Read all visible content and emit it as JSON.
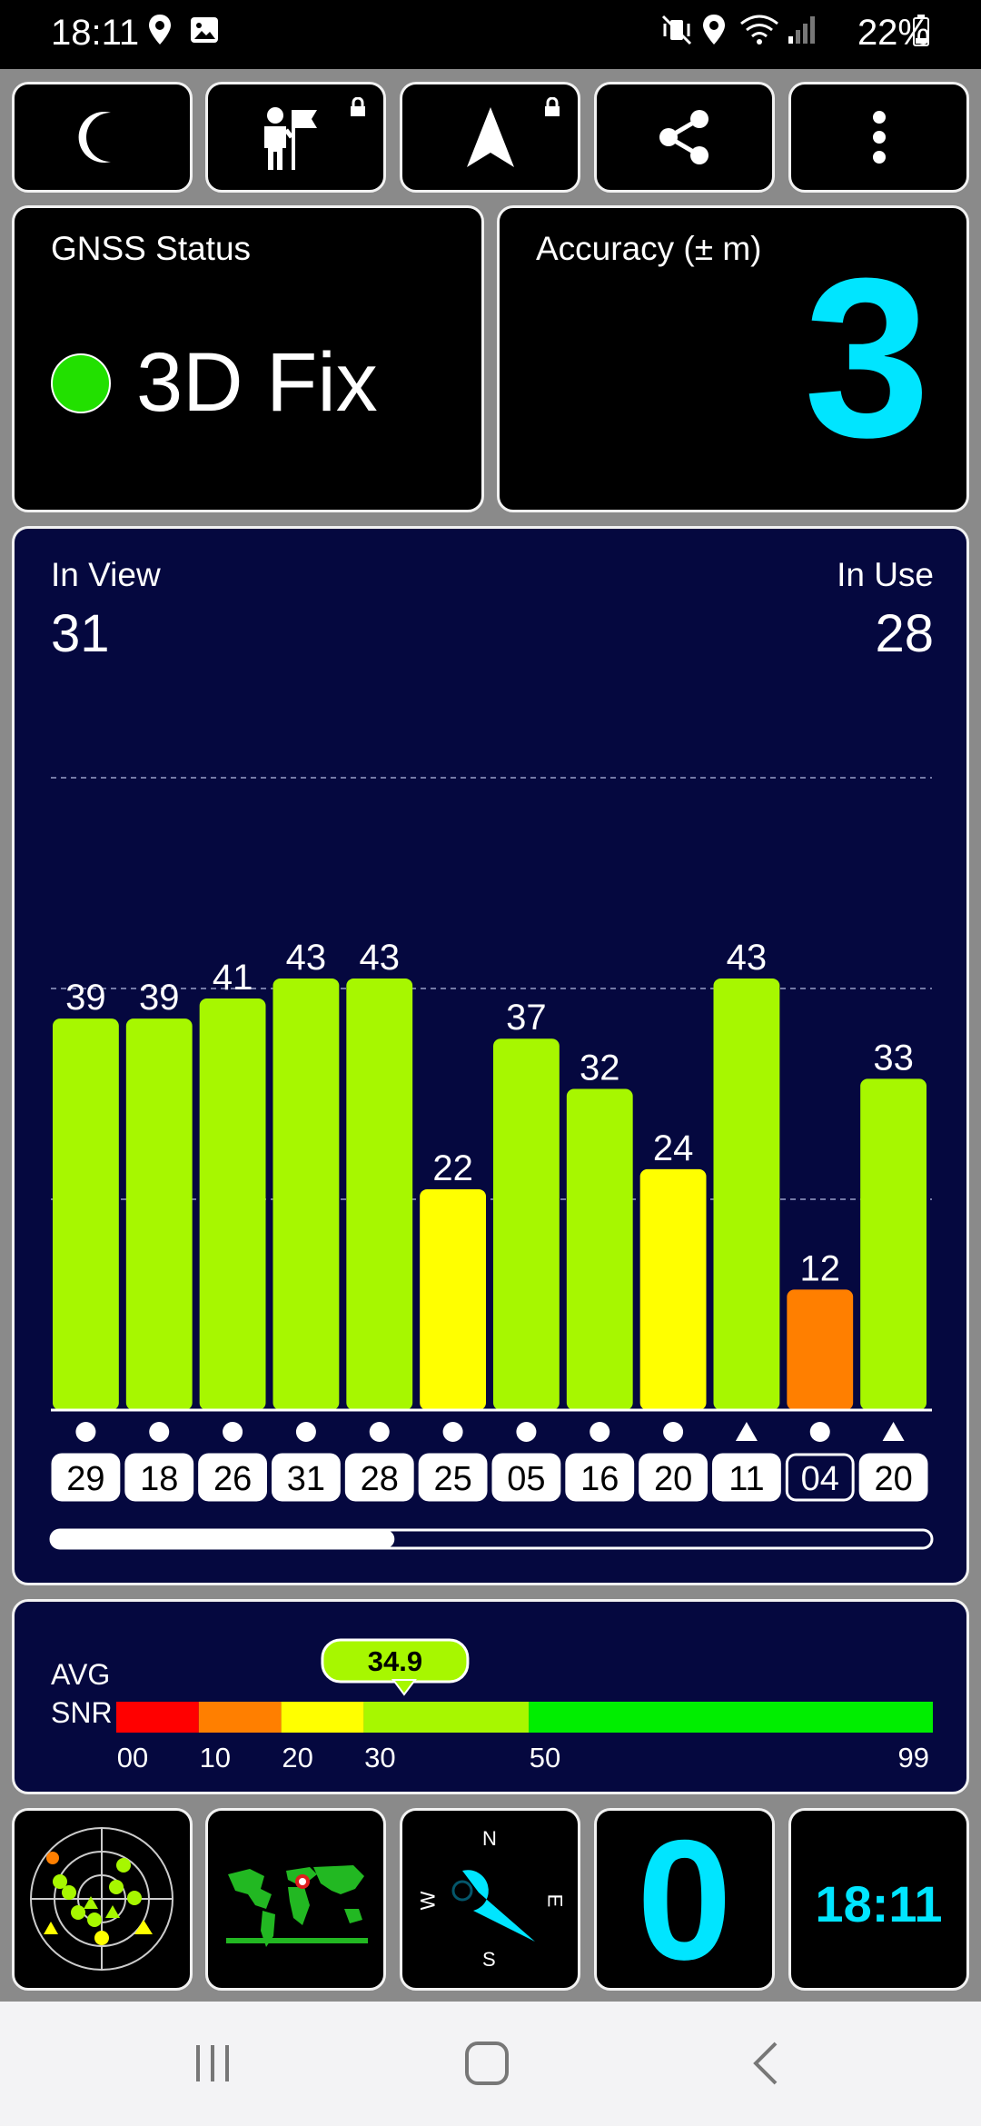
{
  "status_bar": {
    "time": "18:11",
    "battery_percent": "22%",
    "left_icons": [
      "location-pin-icon",
      "image-icon"
    ],
    "right_icons": [
      "mute-vibrate-icon",
      "location-icon",
      "wifi-icon",
      "signal-icon",
      "battery-icon"
    ]
  },
  "toolbar": {
    "buttons": [
      {
        "name": "night-mode-button",
        "icon": "moon-icon"
      },
      {
        "name": "tour-guide-button",
        "icon": "guide-flag-icon",
        "locked": true
      },
      {
        "name": "navigation-button",
        "icon": "navigation-arrow-icon",
        "locked": true
      },
      {
        "name": "share-button",
        "icon": "share-icon"
      },
      {
        "name": "more-button",
        "icon": "more-vert-icon"
      }
    ]
  },
  "gnss_status": {
    "label": "GNSS Status",
    "value": "3D Fix",
    "indicator_color": "#22e000"
  },
  "accuracy": {
    "label": "Accuracy (± m)",
    "value": "3",
    "color": "#00e5ff"
  },
  "satellites": {
    "in_view_label": "In View",
    "in_view_value": "31",
    "in_use_label": "In Use",
    "in_use_value": "28",
    "scroll_position": 0.39
  },
  "chart_data": {
    "type": "bar",
    "categories": [
      "29",
      "18",
      "26",
      "31",
      "28",
      "25",
      "05",
      "16",
      "20",
      "11",
      "04",
      "20"
    ],
    "values": [
      39,
      39,
      41,
      43,
      43,
      22,
      37,
      32,
      24,
      43,
      12,
      33
    ],
    "markers": [
      "circle",
      "circle",
      "circle",
      "circle",
      "circle",
      "circle",
      "circle",
      "circle",
      "circle",
      "triangle",
      "circle",
      "triangle"
    ],
    "outlined": [
      false,
      false,
      false,
      false,
      false,
      false,
      false,
      false,
      false,
      false,
      true,
      false
    ],
    "colors": [
      "#a7f700",
      "#a7f700",
      "#a7f700",
      "#a7f700",
      "#a7f700",
      "#ffff00",
      "#a7f700",
      "#a7f700",
      "#ffff00",
      "#a7f700",
      "#ff7f00",
      "#a7f700"
    ],
    "ylim": [
      0,
      63
    ],
    "gridlines": [
      21,
      42,
      63
    ],
    "grid": true
  },
  "snr": {
    "label_line1": "AVG",
    "label_line2": "SNR",
    "avg_value": "34.9",
    "avg_number": 34.9,
    "scale": [
      {
        "label": "00",
        "from": 0,
        "to": 10,
        "color": "#ff0000"
      },
      {
        "label": "10",
        "from": 10,
        "to": 20,
        "color": "#ff7f00"
      },
      {
        "label": "20",
        "from": 20,
        "to": 30,
        "color": "#ffff00"
      },
      {
        "label": "30",
        "from": 30,
        "to": 50,
        "color": "#a7f700"
      },
      {
        "label": "50",
        "from": 50,
        "to": 99,
        "color": "#00ee00"
      }
    ],
    "max_label": "99"
  },
  "bottom_tiles": {
    "compass": {
      "n": "N",
      "e": "E",
      "s": "S",
      "w": "W"
    },
    "speed": {
      "value": "0",
      "color": "#00e5ff"
    },
    "clock": {
      "value": "18:11",
      "color": "#00e5ff"
    }
  }
}
